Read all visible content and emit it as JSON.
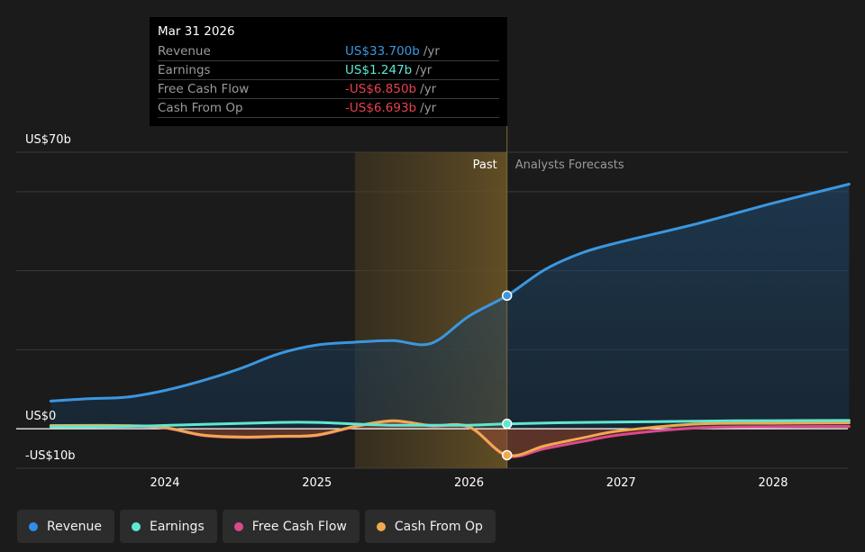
{
  "tooltip": {
    "date": "Mar 31 2026",
    "rows": [
      {
        "label": "Revenue",
        "value": "US$33.700b",
        "unit": "/yr",
        "color": "#3b97e0"
      },
      {
        "label": "Earnings",
        "value": "US$1.247b",
        "unit": "/yr",
        "color": "#5ee8d2"
      },
      {
        "label": "Free Cash Flow",
        "value": "-US$6.850b",
        "unit": "/yr",
        "color": "#e8414f"
      },
      {
        "label": "Cash From Op",
        "value": "-US$6.693b",
        "unit": "/yr",
        "color": "#e8414f"
      }
    ]
  },
  "legend": [
    {
      "label": "Revenue",
      "color": "#2f8fe6"
    },
    {
      "label": "Earnings",
      "color": "#5ee8d2"
    },
    {
      "label": "Free Cash Flow",
      "color": "#d94a8c"
    },
    {
      "label": "Cash From Op",
      "color": "#f1a94e"
    }
  ],
  "regions": {
    "past": "Past",
    "forecast": "Analysts Forecasts"
  },
  "chart_data": {
    "type": "line",
    "y_tick_labels": [
      "US$70b",
      "US$0",
      "-US$10b"
    ],
    "ylim": [
      -10,
      70
    ],
    "xlim": [
      2023.25,
      2028.5
    ],
    "x_ticks": [
      2024,
      2025,
      2026,
      2027,
      2028
    ],
    "x_tick_labels": [
      "2024",
      "2025",
      "2026",
      "2027",
      "2028"
    ],
    "highlight_start": 2025.25,
    "divider_x": 2026.25,
    "grid": true,
    "legend_position": "bottom",
    "series": [
      {
        "name": "Revenue",
        "color": "#3b97e0",
        "x": [
          2023.25,
          2023.5,
          2023.75,
          2024.0,
          2024.25,
          2024.5,
          2024.75,
          2025.0,
          2025.25,
          2025.5,
          2025.75,
          2026.0,
          2026.25,
          2026.5,
          2026.75,
          2027.0,
          2027.5,
          2028.0,
          2028.5
        ],
        "y": [
          7.0,
          7.6,
          8.0,
          9.7,
          12.2,
          15.3,
          19.0,
          21.2,
          21.9,
          22.3,
          21.6,
          28.5,
          33.7,
          40.3,
          44.6,
          47.3,
          51.9,
          57.1,
          61.9
        ]
      },
      {
        "name": "Earnings",
        "color": "#5ee8d2",
        "x": [
          2023.25,
          2023.75,
          2024.25,
          2024.75,
          2025.0,
          2025.25,
          2025.5,
          2025.75,
          2026.0,
          2026.25,
          2026.75,
          2027.25,
          2027.75,
          2028.5
        ],
        "y": [
          0.5,
          0.6,
          1.1,
          1.6,
          1.6,
          1.2,
          0.9,
          0.9,
          0.9,
          1.247,
          1.6,
          1.8,
          2.0,
          2.1
        ]
      },
      {
        "name": "Free Cash Flow",
        "color": "#d94a8c",
        "x": [
          2023.25,
          2023.75,
          2024.0,
          2024.25,
          2024.5,
          2024.75,
          2025.0,
          2025.25,
          2025.5,
          2025.75,
          2026.0,
          2026.25,
          2026.5,
          2026.75,
          2027.0,
          2027.5,
          2028.0,
          2028.5
        ],
        "y": [
          0.8,
          0.7,
          0.2,
          -1.7,
          -2.2,
          -2.0,
          -1.7,
          0.5,
          1.9,
          0.7,
          0.4,
          -6.85,
          -5.0,
          -3.2,
          -1.5,
          0.2,
          0.5,
          0.6
        ]
      },
      {
        "name": "Cash From Op",
        "color": "#f1a94e",
        "x": [
          2023.25,
          2023.75,
          2024.0,
          2024.25,
          2024.5,
          2024.75,
          2025.0,
          2025.25,
          2025.5,
          2025.75,
          2026.0,
          2026.25,
          2026.5,
          2026.75,
          2027.0,
          2027.5,
          2028.0,
          2028.5
        ],
        "y": [
          0.8,
          0.8,
          0.3,
          -1.6,
          -2.1,
          -1.9,
          -1.6,
          0.6,
          2.0,
          0.8,
          0.5,
          -6.693,
          -4.3,
          -2.3,
          -0.5,
          1.2,
          1.4,
          1.5
        ]
      }
    ]
  }
}
